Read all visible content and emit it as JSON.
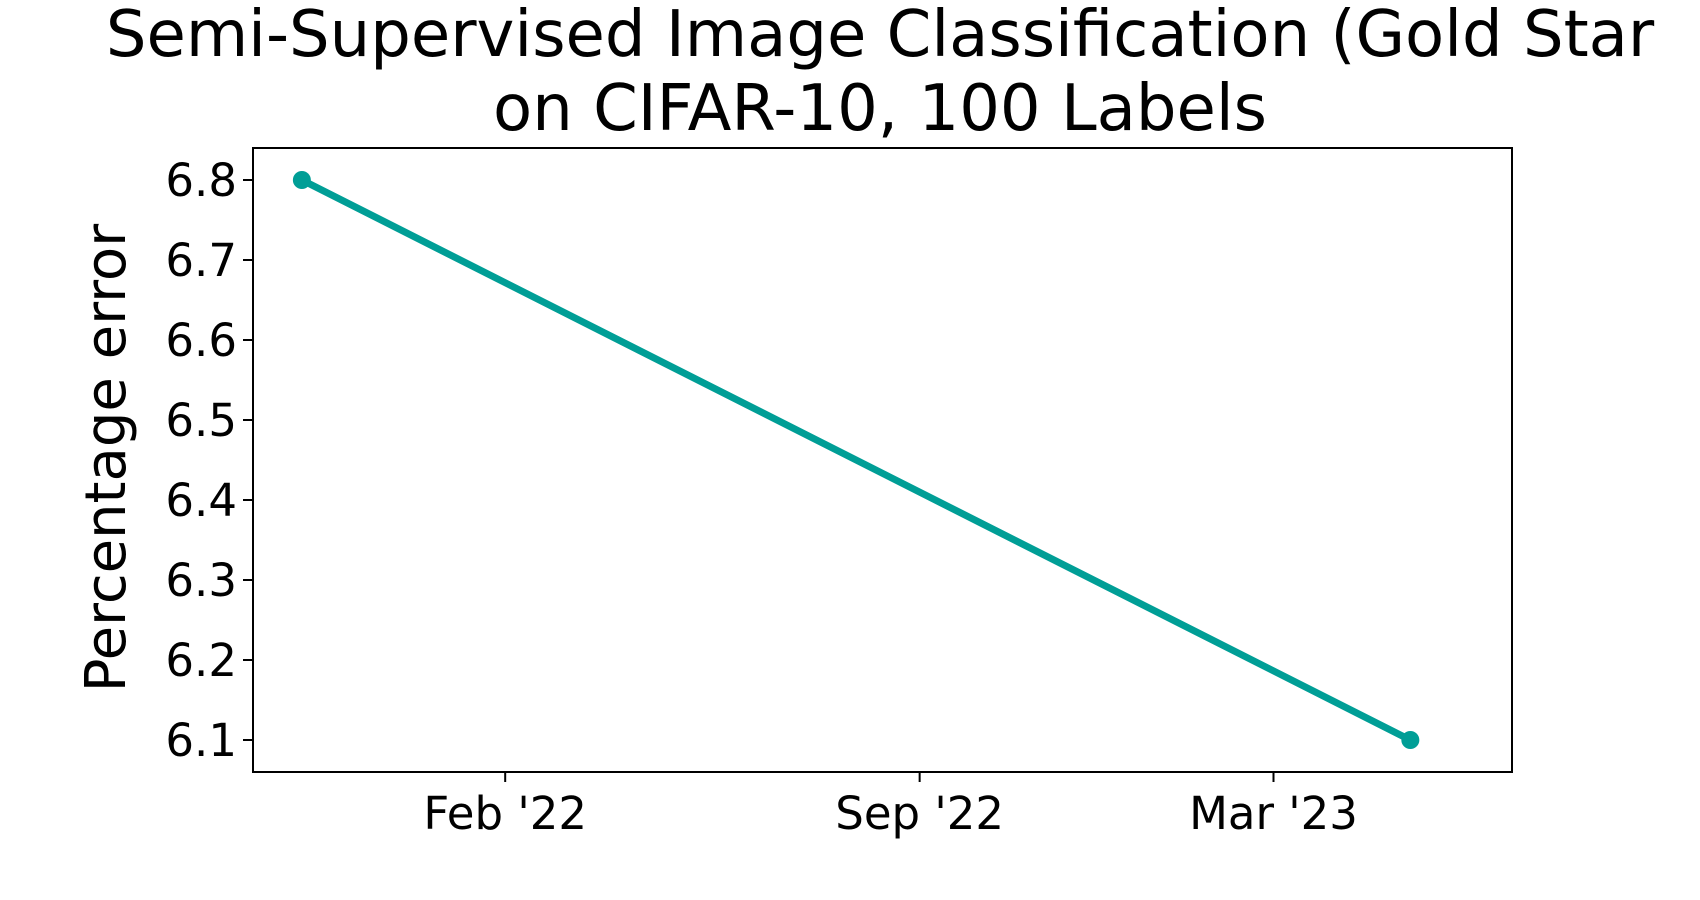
{
  "chart_data": {
    "type": "line",
    "title_line1": "Semi-Supervised Image Classification (Gold Star",
    "title_line2": "on CIFAR-10, 100 Labels",
    "xlabel": "",
    "ylabel": "Percentage error",
    "ylim": [
      6.06,
      6.84
    ],
    "xlim": [
      "2021-09-25",
      "2023-07-01"
    ],
    "yticks": [
      6.1,
      6.2,
      6.3,
      6.4,
      6.5,
      6.6,
      6.7,
      6.8
    ],
    "xticks": [
      {
        "date": "2022-02-01",
        "label": "Feb '22"
      },
      {
        "date": "2022-09-01",
        "label": "Sep '22"
      },
      {
        "date": "2023-03-01",
        "label": "Mar '23"
      }
    ],
    "grid": false,
    "series": [
      {
        "color": "#009e96",
        "points": [
          {
            "x": "2021-10-20",
            "y": 6.8
          },
          {
            "x": "2023-05-10",
            "y": 6.1
          }
        ]
      }
    ]
  }
}
